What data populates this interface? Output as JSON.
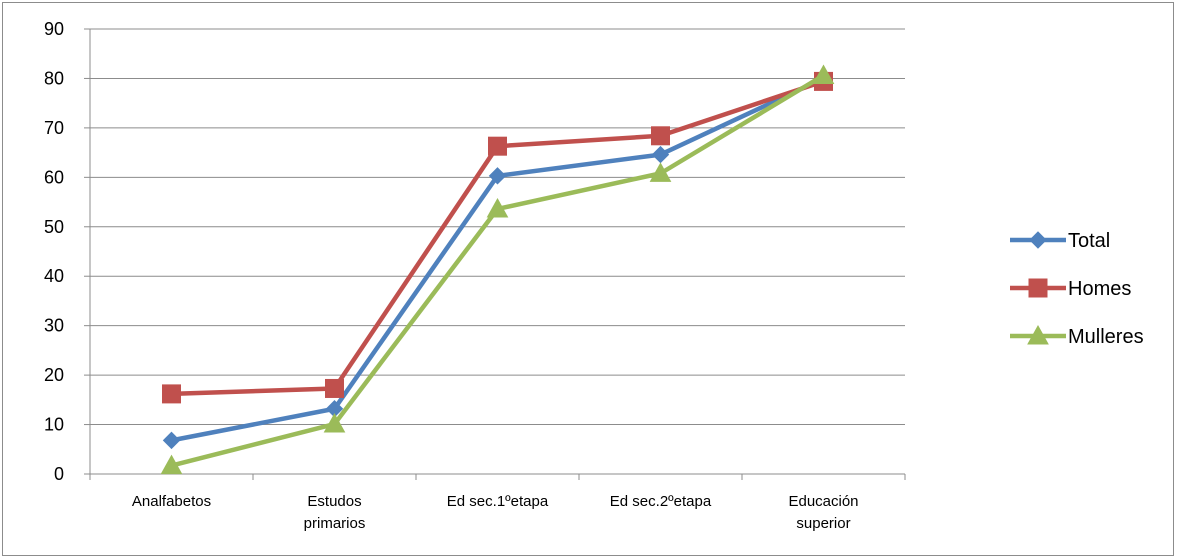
{
  "chart_data": {
    "type": "line",
    "title": "",
    "xlabel": "",
    "ylabel": "",
    "ylim": [
      0,
      90
    ],
    "y_ticks": [
      0,
      10,
      20,
      30,
      40,
      50,
      60,
      70,
      80,
      90
    ],
    "grid": "horizontal",
    "legend_position": "right",
    "categories": [
      [
        "Analfabetos"
      ],
      [
        "Estudos",
        "primarios"
      ],
      [
        "Ed sec.1ºetapa"
      ],
      [
        "Ed sec.2ºetapa"
      ],
      [
        "Educación",
        "superior"
      ]
    ],
    "series": [
      {
        "name": "Total",
        "color": "#4f81bd",
        "marker": "diamond",
        "values": [
          6.8,
          13.2,
          60.3,
          64.6,
          80.0
        ]
      },
      {
        "name": "Homes",
        "color": "#c0504d",
        "marker": "square",
        "values": [
          16.2,
          17.3,
          66.3,
          68.4,
          79.4
        ]
      },
      {
        "name": "Mulleres",
        "color": "#9bbb59",
        "marker": "triangle",
        "values": [
          1.7,
          10.1,
          53.6,
          60.8,
          80.6
        ]
      }
    ]
  }
}
